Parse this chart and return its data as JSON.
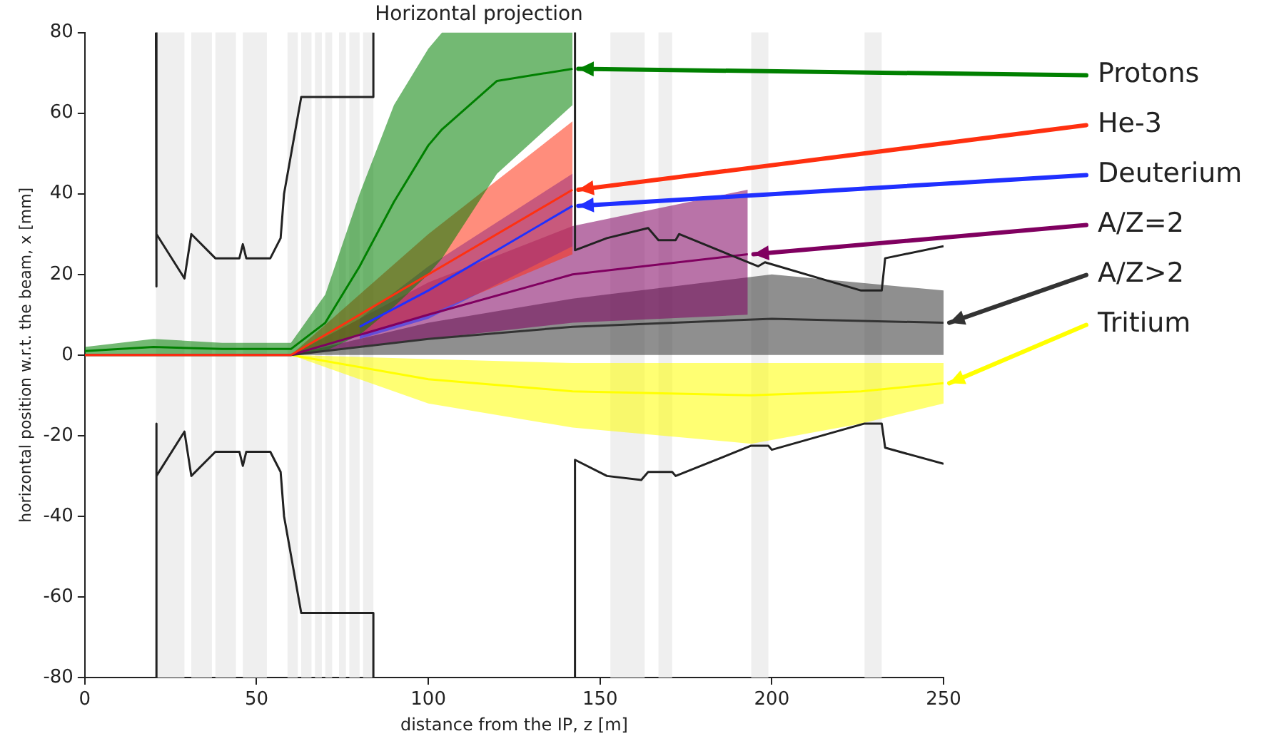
{
  "chart_data": {
    "type": "line",
    "title": "Horizontal projection",
    "xlabel": "distance from the IP, z [m]",
    "ylabel": "horizontal position w.r.t. the beam, x [mm]",
    "xlim": [
      0,
      250
    ],
    "ylim": [
      -80,
      80
    ],
    "xticks": [
      0,
      50,
      100,
      150,
      200,
      250
    ],
    "yticks": [
      -80,
      -60,
      -40,
      -20,
      0,
      20,
      40,
      60,
      80
    ],
    "grid": false,
    "legend": false,
    "bands": [
      {
        "axis": "x",
        "from": 20.7,
        "to": 29,
        "color": "#efefef"
      },
      {
        "axis": "x",
        "from": 31,
        "to": 37,
        "color": "#efefef"
      },
      {
        "axis": "x",
        "from": 38,
        "to": 44,
        "color": "#efefef"
      },
      {
        "axis": "x",
        "from": 46,
        "to": 53,
        "color": "#efefef"
      },
      {
        "axis": "x",
        "from": 59,
        "to": 62,
        "color": "#efefef"
      },
      {
        "axis": "x",
        "from": 63,
        "to": 66,
        "color": "#efefef"
      },
      {
        "axis": "x",
        "from": 67,
        "to": 69,
        "color": "#efefef"
      },
      {
        "axis": "x",
        "from": 70,
        "to": 72,
        "color": "#efefef"
      },
      {
        "axis": "x",
        "from": 74,
        "to": 76,
        "color": "#efefef"
      },
      {
        "axis": "x",
        "from": 77,
        "to": 80,
        "color": "#efefef"
      },
      {
        "axis": "x",
        "from": 81,
        "to": 84,
        "color": "#efefef"
      },
      {
        "axis": "x",
        "from": 153,
        "to": 163,
        "color": "#efefef"
      },
      {
        "axis": "x",
        "from": 167,
        "to": 171,
        "color": "#efefef"
      },
      {
        "axis": "x",
        "from": 194,
        "to": 199,
        "color": "#efefef"
      },
      {
        "axis": "x",
        "from": 227,
        "to": 232,
        "color": "#efefef"
      }
    ],
    "series": [
      {
        "color": "#222222",
        "x": [
          20.7,
          20.7,
          21,
          29,
          31,
          38,
          45,
          46,
          47,
          54,
          57,
          58,
          63,
          84,
          84
        ],
        "values": [
          80,
          17,
          30,
          19,
          30,
          24,
          24,
          27.5,
          24,
          24,
          29,
          40,
          64,
          64,
          80
        ]
      },
      {
        "color": "#222222",
        "x": [
          20.7,
          20.7,
          21,
          29,
          31,
          38,
          45,
          46,
          47,
          54,
          57,
          58,
          63,
          84,
          84
        ],
        "values": [
          -80,
          -17,
          -30,
          -19,
          -30,
          -24,
          -24,
          -27.5,
          -24,
          -24,
          -29,
          -40,
          -64,
          -64,
          -80
        ]
      },
      {
        "color": "#222222",
        "x": [
          142.7,
          142.7,
          152,
          164,
          167,
          172,
          173,
          196,
          198,
          226,
          232,
          233,
          250
        ],
        "values": [
          80,
          26,
          29,
          31.5,
          28.5,
          28.5,
          30,
          22,
          23,
          16,
          16,
          24,
          27
        ]
      },
      {
        "color": "#222222",
        "x": [
          142.7,
          142.7,
          152,
          162,
          164,
          171,
          172,
          194,
          199,
          200,
          227,
          232,
          233,
          250
        ],
        "values": [
          -80,
          -26,
          -30,
          -31,
          -29,
          -29,
          -30,
          -22.5,
          -22.5,
          -23.5,
          -17,
          -17,
          -23,
          -27
        ]
      },
      {
        "name": "Protons",
        "color": "#008000",
        "x": [
          0,
          20,
          40,
          60,
          70,
          80,
          90,
          100,
          104,
          120,
          142
        ],
        "values": [
          1,
          2,
          1.5,
          1.5,
          8,
          22,
          38,
          52,
          56,
          68,
          71
        ],
        "lower": [
          0,
          0,
          0,
          0,
          1,
          5,
          12,
          20,
          24,
          45,
          62
        ],
        "upper": [
          2,
          4,
          3,
          3,
          15,
          40,
          62,
          76,
          80,
          80,
          80
        ]
      },
      {
        "name": "He-3",
        "color": "#ff3010",
        "x": [
          0,
          60,
          100,
          142
        ],
        "values": [
          0,
          0,
          20,
          41
        ],
        "lower": [
          0,
          0,
          10,
          25
        ],
        "upper": [
          0,
          0,
          30,
          58
        ]
      },
      {
        "name": "Deuterium",
        "color": "#2030ff",
        "x": [
          80,
          100,
          142
        ],
        "values": [
          7,
          16,
          37
        ],
        "lower": [
          4,
          9,
          27
        ],
        "upper": [
          9,
          22,
          45
        ]
      },
      {
        "name": "A/Z=2",
        "color": "#800060",
        "x": [
          0,
          60,
          100,
          142,
          193
        ],
        "values": [
          0,
          0,
          10,
          20,
          25
        ],
        "lower": [
          0,
          0,
          4,
          8,
          10
        ],
        "upper": [
          0,
          0,
          18,
          32,
          41
        ]
      },
      {
        "name": "A/Z>2",
        "color": "#333333",
        "x": [
          0,
          60,
          100,
          142,
          200,
          250
        ],
        "values": [
          0,
          0,
          4,
          7,
          9,
          8
        ],
        "lower": [
          0,
          0,
          0,
          0,
          0,
          0
        ],
        "upper": [
          0,
          0,
          8,
          14,
          20,
          16
        ]
      },
      {
        "name": "Tritium",
        "color": "#ffff00",
        "x": [
          0,
          60,
          100,
          142,
          194,
          226,
          250
        ],
        "values": [
          0,
          0,
          -6,
          -9,
          -10,
          -9,
          -7
        ],
        "lower": [
          0,
          0,
          -12,
          -18,
          -22,
          -17,
          -12
        ],
        "upper": [
          0,
          0,
          -1,
          -2,
          -2,
          -2,
          -2
        ]
      }
    ]
  }
}
